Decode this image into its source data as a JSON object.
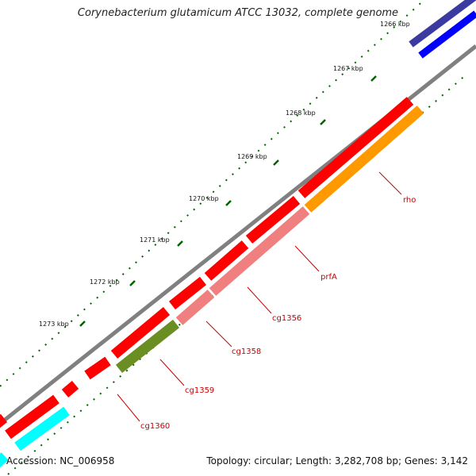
{
  "header": {
    "title": "Corynebacterium glutamicum ATCC 13032, complete genome"
  },
  "footer": {
    "accession": "Accession: NC_006958",
    "stats": "Topology: circular; Length: 3,282,708 bp; Genes: 3,142"
  },
  "ticks": [
    {
      "label": "1266 kbp"
    },
    {
      "label": "1267 kbp"
    },
    {
      "label": "1268 kbp"
    },
    {
      "label": "1269 kbp"
    },
    {
      "label": "1270 kbp"
    },
    {
      "label": "1271 kbp"
    },
    {
      "label": "1272 kbp"
    },
    {
      "label": "1273 kbp"
    }
  ],
  "genes": [
    {
      "label": "rho"
    },
    {
      "label": "prfA"
    },
    {
      "label": "cg1356"
    },
    {
      "label": "cg1358"
    },
    {
      "label": "cg1359"
    },
    {
      "label": "cg1360"
    }
  ],
  "colors": {
    "forward_cds": "#ff0000",
    "backbone": "#808080",
    "rho": "#ff9900",
    "prfA": "#f08080",
    "cg1356": "#f08080",
    "cg1358": "#f08080",
    "cg1359": "#6b8e23",
    "cg1360": "#00ffff",
    "label_text": "#cc0000",
    "tick_color": "#006400",
    "blue_track": "#0000ff",
    "navy_track": "#3a3aa0"
  }
}
